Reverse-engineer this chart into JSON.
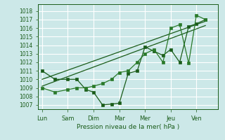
{
  "xlabel": "Pression niveau de la mer( hPa )",
  "bg_color": "#cce8e8",
  "grid_color": "#ffffff",
  "line_color_dark": "#1a5c1a",
  "line_color_mid": "#2a7a2a",
  "ylim": [
    1006.5,
    1018.8
  ],
  "yticks": [
    1007,
    1008,
    1009,
    1010,
    1011,
    1012,
    1013,
    1014,
    1015,
    1016,
    1017,
    1018
  ],
  "x_labels": [
    "Lun",
    "Sam",
    "Dim",
    "Mar",
    "Mer",
    "Jeu",
    "Ven"
  ],
  "x_positions": [
    0,
    1,
    2,
    3,
    4,
    5,
    6
  ],
  "xlim": [
    -0.15,
    6.85
  ],
  "series1_x": [
    0,
    0.5,
    1.0,
    1.35,
    1.7,
    2.0,
    2.35,
    2.7,
    3.0,
    3.35,
    3.7,
    4.0,
    4.35,
    4.7,
    5.0,
    5.35,
    5.7,
    6.0,
    6.35
  ],
  "series1_y": [
    1011.0,
    1010.0,
    1010.0,
    1010.0,
    1008.8,
    1008.5,
    1007.0,
    1007.1,
    1007.2,
    1010.7,
    1011.0,
    1013.8,
    1013.3,
    1012.8,
    1013.5,
    1012.0,
    1016.2,
    1016.5,
    1017.0
  ],
  "series2_x": [
    0,
    0.5,
    1.0,
    1.35,
    1.7,
    2.0,
    2.35,
    2.7,
    3.0,
    3.35,
    3.7,
    4.0,
    4.35,
    4.7,
    5.0,
    5.35,
    5.7,
    6.0,
    6.35
  ],
  "series2_y": [
    1009.0,
    1008.5,
    1008.8,
    1009.0,
    1009.0,
    1009.2,
    1009.5,
    1010.0,
    1010.8,
    1011.0,
    1012.0,
    1013.0,
    1013.5,
    1012.0,
    1016.0,
    1016.4,
    1011.9,
    1017.5,
    1017.0
  ],
  "trend1_x": [
    0,
    6.35
  ],
  "trend1_y": [
    1010.0,
    1016.8
  ],
  "trend2_x": [
    0,
    6.35
  ],
  "trend2_y": [
    1009.2,
    1016.3
  ]
}
